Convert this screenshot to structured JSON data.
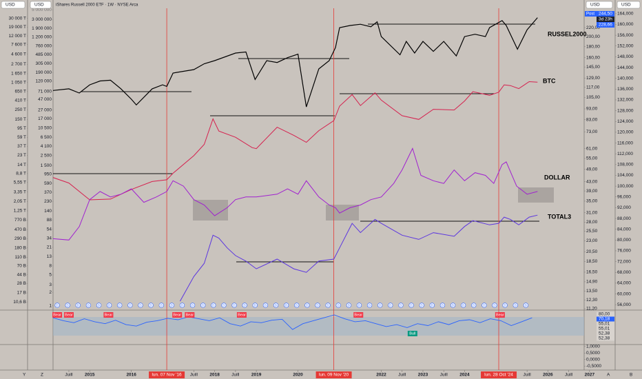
{
  "header": {
    "left_units": [
      "USD",
      "USD"
    ],
    "title": "iShares Russell 2000 ETF · 1W · NYSE Arca",
    "right_units": [
      "USD",
      "USD"
    ]
  },
  "price_tags": {
    "label": "Post",
    "last": "244,50",
    "countdown": "3d 23h",
    "prev": "228,66"
  },
  "corner_labels": [
    "Y",
    "Z",
    "A",
    "B"
  ],
  "chart_data": [
    {
      "type": "line",
      "label": "RUSSEL2000",
      "color": "#000000",
      "log": true,
      "xlim": [
        2014.12,
        2026.87
      ],
      "xticks": [
        {
          "value": 2014.5,
          "label": "Juill"
        },
        2015,
        2016,
        {
          "value": 2017.5,
          "label": "Juill"
        },
        2018,
        {
          "value": 2018.5,
          "label": "Juill"
        },
        2019,
        2020,
        2022,
        {
          "value": 2022.5,
          "label": "Juill"
        },
        2023,
        {
          "value": 2023.5,
          "label": "Juill"
        },
        2024,
        {
          "value": 2025.5,
          "label": "Juill"
        },
        2026,
        {
          "value": 2026.5,
          "label": "Juill"
        },
        2027
      ],
      "events": [
        {
          "value": 2016.85,
          "label": "lun. 07 Nov '16"
        },
        {
          "value": 2020.86,
          "label": "lun. 09 Nov '20"
        },
        {
          "value": 2024.82,
          "label": "lun. 28 Oct '24"
        }
      ],
      "ylim": [
        11.04,
        270
      ],
      "yticks": [
        {
          "value": 220,
          "label": "220,00"
        },
        {
          "value": 200,
          "label": "200,00"
        },
        {
          "value": 180,
          "label": "180,00"
        },
        {
          "value": 160,
          "label": "160,00"
        },
        {
          "value": 145,
          "label": "145,00"
        },
        {
          "value": 129,
          "label": "129,00"
        },
        {
          "value": 117,
          "label": "117,00"
        },
        {
          "value": 105,
          "label": "105,00"
        },
        {
          "value": 93,
          "label": "93,00"
        },
        {
          "value": 83,
          "label": "83,00"
        },
        {
          "value": 73,
          "label": "73,00"
        },
        {
          "value": 61,
          "label": "61,00"
        },
        {
          "value": 55,
          "label": "55,00"
        },
        {
          "value": 49,
          "label": "49,00"
        },
        {
          "value": 43,
          "label": "43,00"
        },
        {
          "value": 39,
          "label": "39,00"
        },
        {
          "value": 35,
          "label": "35,00"
        },
        {
          "value": 31,
          "label": "31,00"
        },
        {
          "value": 28,
          "label": "28,00"
        },
        {
          "value": 25.5,
          "label": "25,50"
        },
        {
          "value": 23,
          "label": "23,00"
        },
        {
          "value": 20.5,
          "label": "20,50"
        },
        {
          "value": 18.5,
          "label": "18,50"
        },
        {
          "value": 16.5,
          "label": "16,50"
        },
        {
          "value": 14.9,
          "label": "14,90"
        },
        {
          "value": 13.5,
          "label": "13,50"
        },
        {
          "value": 12.3,
          "label": "12,30"
        },
        {
          "value": 11.2,
          "label": "11,20"
        }
      ],
      "x": [
        2014.12,
        2014.5,
        2014.75,
        2015.0,
        2015.25,
        2015.5,
        2015.75,
        2016.0,
        2016.12,
        2016.5,
        2016.75,
        2016.85,
        2017.0,
        2017.5,
        2017.75,
        2018.0,
        2018.5,
        2018.75,
        2018.97,
        2019.25,
        2019.5,
        2019.75,
        2020.0,
        2020.2,
        2020.5,
        2020.75,
        2020.9,
        2021.0,
        2021.25,
        2021.5,
        2021.75,
        2021.9,
        2022.0,
        2022.45,
        2022.6,
        2022.8,
        2023.0,
        2023.25,
        2023.5,
        2023.8,
        2024.0,
        2024.25,
        2024.5,
        2024.6,
        2024.9,
        2025.0,
        2025.27,
        2025.5,
        2025.75
      ],
      "values": [
        113,
        115,
        110,
        120,
        125,
        126,
        115,
        103,
        97,
        115,
        120,
        118,
        136,
        141,
        150,
        155,
        168,
        170,
        127,
        155,
        152,
        160,
        166,
        95,
        142,
        155,
        178,
        220,
        225,
        228,
        222,
        234,
        200,
        165,
        190,
        168,
        190,
        171,
        190,
        163,
        200,
        205,
        200,
        220,
        237,
        225,
        175,
        215,
        244.5
      ]
    },
    {
      "type": "line",
      "label": "BTC",
      "color": "#d6204e",
      "log": true,
      "ylim": [
        0.8,
        5400000
      ],
      "yticks": [
        {
          "value": 5000000,
          "label": "5 000 000"
        },
        {
          "value": 3000000,
          "label": "3 000 000"
        },
        {
          "value": 1900000,
          "label": "1 900 000"
        },
        {
          "value": 1200000,
          "label": "1 200 000"
        },
        {
          "value": 760000,
          "label": "760 000"
        },
        {
          "value": 485000,
          "label": "485 000"
        },
        {
          "value": 305000,
          "label": "305 000"
        },
        {
          "value": 190000,
          "label": "190 000"
        },
        {
          "value": 120000,
          "label": "120 000"
        },
        {
          "value": 71000,
          "label": "71 000"
        },
        {
          "value": 47000,
          "label": "47 000"
        },
        {
          "value": 27000,
          "label": "27 000"
        },
        {
          "value": 17000,
          "label": "17 000"
        },
        {
          "value": 10500,
          "label": "10 500"
        },
        {
          "value": 6500,
          "label": "6 500"
        },
        {
          "value": 4100,
          "label": "4 100"
        },
        {
          "value": 2500,
          "label": "2 500"
        },
        {
          "value": 1500,
          "label": "1 500"
        },
        950,
        590,
        370,
        230,
        140,
        88,
        54,
        34,
        21,
        13,
        8,
        5,
        3,
        2,
        1
      ],
      "x": [
        2014.12,
        2014.5,
        2015.0,
        2015.5,
        2016.0,
        2016.5,
        2016.85,
        2017.0,
        2017.5,
        2017.75,
        2017.96,
        2018.1,
        2018.5,
        2018.9,
        2019.0,
        2019.5,
        2019.9,
        2020.2,
        2020.5,
        2020.86,
        2021.0,
        2021.3,
        2021.5,
        2021.85,
        2022.0,
        2022.5,
        2022.9,
        2023.25,
        2023.75,
        2024.0,
        2024.2,
        2024.6,
        2024.82,
        2024.95,
        2025.1,
        2025.3,
        2025.55,
        2025.75
      ],
      "values": [
        800,
        600,
        250,
        260,
        430,
        650,
        710,
        1000,
        2500,
        4500,
        17000,
        9000,
        6500,
        3800,
        3600,
        11000,
        7200,
        5000,
        9200,
        15500,
        33000,
        60000,
        34000,
        66000,
        45000,
        20000,
        16500,
        28000,
        27000,
        43000,
        70000,
        58000,
        68000,
        100000,
        96000,
        82000,
        118000,
        115000
      ]
    },
    {
      "type": "line",
      "label": "DOLLAR",
      "color": "#a020d0",
      "log": false,
      "ylim": [
        54,
        166
      ],
      "yticks": [
        {
          "value": 164,
          "label": "164,000"
        },
        {
          "value": 160,
          "label": "160,000"
        },
        {
          "value": 156,
          "label": "156,000"
        },
        {
          "value": 152,
          "label": "152,000"
        },
        {
          "value": 148,
          "label": "148,000"
        },
        {
          "value": 144,
          "label": "144,000"
        },
        {
          "value": 140,
          "label": "140,000"
        },
        {
          "value": 136,
          "label": "136,000"
        },
        {
          "value": 132,
          "label": "132,000"
        },
        {
          "value": 128,
          "label": "128,000"
        },
        {
          "value": 124,
          "label": "124,000"
        },
        {
          "value": 120,
          "label": "120,000"
        },
        {
          "value": 116,
          "label": "116,000"
        },
        {
          "value": 112,
          "label": "112,000"
        },
        {
          "value": 108,
          "label": "108,000"
        },
        {
          "value": 104,
          "label": "104,000"
        },
        {
          "value": 100,
          "label": "100,000"
        },
        {
          "value": 96,
          "label": "96,000"
        },
        {
          "value": 92,
          "label": "92,000"
        },
        {
          "value": 88,
          "label": "88,000"
        },
        {
          "value": 84,
          "label": "84,000"
        },
        {
          "value": 80,
          "label": "80,000"
        },
        {
          "value": 76,
          "label": "76,000"
        },
        {
          "value": 72,
          "label": "72,000"
        },
        {
          "value": 68,
          "label": "68,000"
        },
        {
          "value": 64,
          "label": "64,000"
        },
        {
          "value": 60,
          "label": "60,000"
        },
        {
          "value": 56,
          "label": "56,000"
        }
      ],
      "x": [
        2014.12,
        2014.5,
        2014.75,
        2015.0,
        2015.25,
        2015.5,
        2015.75,
        2016.0,
        2016.3,
        2016.6,
        2016.85,
        2017.0,
        2017.25,
        2017.5,
        2017.75,
        2018.0,
        2018.3,
        2018.5,
        2018.75,
        2019.0,
        2019.5,
        2019.75,
        2020.0,
        2020.2,
        2020.5,
        2020.75,
        2020.9,
        2021.0,
        2021.25,
        2021.5,
        2021.75,
        2022.0,
        2022.3,
        2022.5,
        2022.75,
        2022.95,
        2023.25,
        2023.5,
        2023.75,
        2024.0,
        2024.25,
        2024.5,
        2024.7,
        2024.9,
        2025.0,
        2025.25,
        2025.5,
        2025.75
      ],
      "values": [
        80.5,
        80,
        85,
        95,
        98,
        96,
        97,
        99,
        94,
        96,
        98,
        102,
        100,
        95,
        93,
        89,
        92,
        95,
        96,
        96,
        97,
        99,
        97,
        102,
        96,
        93,
        92,
        90,
        92,
        93,
        95,
        96,
        101,
        106,
        114,
        104,
        102,
        101,
        106,
        102,
        105,
        104,
        101,
        108,
        109,
        100,
        97,
        98
      ]
    },
    {
      "type": "line",
      "label": "TOTAL3",
      "color": "#5b35e0",
      "log": true,
      "ylim": [
        6.9,
        51000000
      ],
      "yticks": [
        {
          "value": 30000000,
          "label": "30 000 T"
        },
        {
          "value": 19000000,
          "label": "19 000 T"
        },
        {
          "value": 12000000,
          "label": "12 000 T"
        },
        {
          "value": 7600000,
          "label": "7 600 T"
        },
        {
          "value": 4600000,
          "label": "4 600 T"
        },
        {
          "value": 2700000,
          "label": "2 700 T"
        },
        {
          "value": 1650000,
          "label": "1 650 T"
        },
        {
          "value": 1050000,
          "label": "1 050 T"
        },
        {
          "value": 650000,
          "label": "650 T"
        },
        {
          "value": 410000,
          "label": "410 T"
        },
        {
          "value": 250000,
          "label": "250 T"
        },
        {
          "value": 150000,
          "label": "150 T"
        },
        {
          "value": 95000,
          "label": "95 T"
        },
        {
          "value": 59000,
          "label": "59 T"
        },
        {
          "value": 37000,
          "label": "37 T"
        },
        {
          "value": 23000,
          "label": "23 T"
        },
        {
          "value": 14000,
          "label": "14 T"
        },
        {
          "value": 8800,
          "label": "8,8 T"
        },
        {
          "value": 5550,
          "label": "5,55 T"
        },
        {
          "value": 3350,
          "label": "3,35 T"
        },
        {
          "value": 2050,
          "label": "2,05 T"
        },
        {
          "value": 1250,
          "label": "1,25 T"
        },
        {
          "value": 770,
          "label": "770 B"
        },
        {
          "value": 470,
          "label": "470 B"
        },
        {
          "value": 290,
          "label": "290 B"
        },
        {
          "value": 180,
          "label": "180 B"
        },
        {
          "value": 110,
          "label": "110 B"
        },
        {
          "value": 70,
          "label": "70 B"
        },
        {
          "value": 44,
          "label": "44 B"
        },
        {
          "value": 28,
          "label": "28 B"
        },
        {
          "value": 17,
          "label": "17 B"
        },
        {
          "value": 10.6,
          "label": "10,6 B"
        }
      ],
      "x": [
        2017.17,
        2017.5,
        2017.75,
        2017.96,
        2018.1,
        2018.3,
        2018.5,
        2018.75,
        2019.0,
        2019.5,
        2019.9,
        2020.2,
        2020.5,
        2020.86,
        2021.0,
        2021.3,
        2021.5,
        2021.85,
        2022.0,
        2022.5,
        2022.9,
        2023.25,
        2023.75,
        2024.0,
        2024.2,
        2024.6,
        2024.82,
        2024.95,
        2025.1,
        2025.3,
        2025.55,
        2025.75
      ],
      "values": [
        11,
        40,
        80,
        350,
        300,
        180,
        120,
        90,
        60,
        100,
        60,
        50,
        90,
        100,
        180,
        650,
        400,
        800,
        650,
        350,
        280,
        400,
        330,
        550,
        750,
        600,
        650,
        900,
        800,
        600,
        900,
        1000
      ]
    },
    {
      "type": "oscillator",
      "color": "#2962ff",
      "log": false,
      "ylim": [
        20,
        85
      ],
      "tags": [
        "80,00",
        "70,18",
        "55,01",
        "55,01",
        "52,38",
        "52,38"
      ],
      "x": [
        2014.12,
        2014.37,
        2014.62,
        2014.87,
        2015.12,
        2015.37,
        2015.62,
        2015.87,
        2016.12,
        2016.37,
        2016.62,
        2016.87,
        2017.12,
        2017.37,
        2017.62,
        2017.87,
        2018.12,
        2018.37,
        2018.62,
        2018.87,
        2019.12,
        2019.37,
        2019.62,
        2019.87,
        2020.12,
        2020.37,
        2020.62,
        2020.87,
        2021.12,
        2021.37,
        2021.62,
        2021.87,
        2022.12,
        2022.37,
        2022.62,
        2022.87,
        2023.12,
        2023.37,
        2023.62,
        2023.87,
        2024.12,
        2024.37,
        2024.62,
        2024.87,
        2025.12,
        2025.37,
        2025.62
      ],
      "values": [
        72,
        66,
        62,
        70,
        64,
        60,
        67,
        58,
        55,
        63,
        66,
        71,
        68,
        74,
        70,
        66,
        72,
        60,
        55,
        64,
        62,
        67,
        69,
        48,
        60,
        66,
        72,
        78,
        70,
        64,
        66,
        60,
        54,
        58,
        52,
        60,
        56,
        64,
        58,
        66,
        68,
        62,
        70,
        66,
        56,
        64,
        72
      ],
      "signals": [
        {
          "label": "Bear",
          "x": 2014.22
        },
        {
          "label": "Bear",
          "x": 2014.5
        },
        {
          "label": "Bear",
          "x": 2015.45
        },
        {
          "label": "Bear",
          "x": 2017.1
        },
        {
          "label": "Bear",
          "x": 2017.4
        },
        {
          "label": "Bear",
          "x": 2018.65
        },
        {
          "label": "Bear",
          "x": 2021.45
        },
        {
          "label": "Bull",
          "x": 2022.75
        },
        {
          "label": "Bear",
          "x": 2024.85
        }
      ]
    },
    {
      "type": "empty",
      "ylim": [
        -0.7,
        1.15
      ],
      "yticks": [
        {
          "value": 1,
          "label": "1,0000"
        },
        {
          "value": 0.5,
          "label": "0,5000"
        },
        {
          "value": 0,
          "label": "0,0000"
        },
        {
          "value": -0.5,
          "label": "-0,5000"
        }
      ]
    }
  ],
  "dividends": {
    "label": "D",
    "x": [
      2014.22,
      2014.47,
      2014.72,
      2014.97,
      2015.22,
      2015.47,
      2015.72,
      2015.97,
      2016.22,
      2016.47,
      2016.72,
      2016.97,
      2017.22,
      2017.47,
      2017.72,
      2017.97,
      2018.22,
      2018.47,
      2018.72,
      2018.97,
      2019.22,
      2019.47,
      2019.72,
      2019.97,
      2020.22,
      2020.47,
      2020.72,
      2020.97,
      2021.22,
      2021.47,
      2021.72,
      2021.97,
      2022.22,
      2022.47,
      2022.72,
      2022.97,
      2023.22,
      2023.47,
      2023.72,
      2023.97,
      2024.22,
      2024.47,
      2024.72,
      2024.97,
      2025.22,
      2025.47
    ]
  }
}
